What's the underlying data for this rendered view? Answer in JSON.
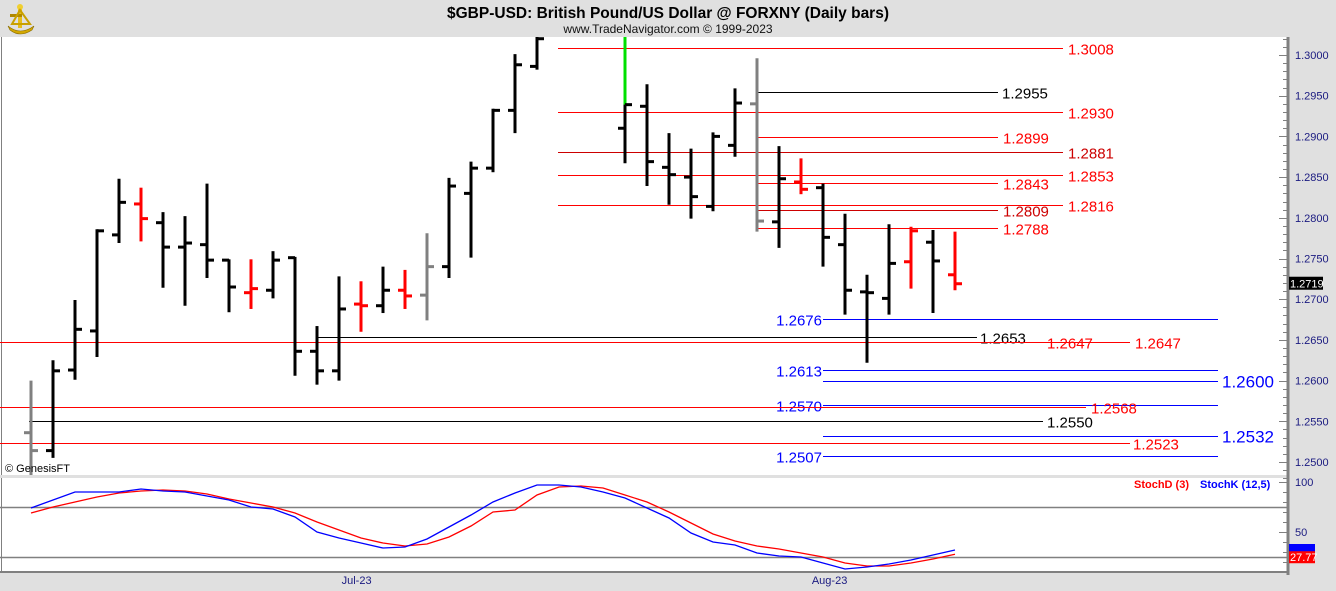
{
  "header": {
    "title": "$GBP-USD:  British Pound/US Dollar @ FORXNY  (Daily bars)",
    "subtitle": "www.TradeNavigator.com © 1999-2023",
    "logo_icon": "gold-sextant-icon"
  },
  "copyright": "© GenesisFT",
  "colors": {
    "up": "#000000",
    "down": "#ff0000",
    "neutral": "#808080",
    "highlight": "#00e000",
    "stochK": "#0000ff",
    "stochD": "#ff0000"
  },
  "chart_data": [
    {
      "type": "ohlc",
      "title": "$GBP-USD:  British Pound/US Dollar @ FORXNY  (Daily bars)",
      "ylim": [
        1.2478,
        1.3022
      ],
      "y_ticks": [
        "1.3000",
        "1.2950",
        "1.2900",
        "1.2850",
        "1.2800",
        "1.2750",
        "1.2700",
        "1.2650",
        "1.2600",
        "1.2550",
        "1.2500"
      ],
      "last_price": "1.2719",
      "x_labels": [
        {
          "label": "Jul-23",
          "index": 14.8
        },
        {
          "label": "Aug-23",
          "index": 36.3
        }
      ],
      "bars": [
        {
          "o": 1.2536,
          "h": 1.26,
          "l": 1.2482,
          "c": 1.2514,
          "color": "gray"
        },
        {
          "o": 1.2514,
          "h": 1.2625,
          "l": 1.2505,
          "c": 1.2612,
          "color": "black"
        },
        {
          "o": 1.2613,
          "h": 1.2699,
          "l": 1.2601,
          "c": 1.2663,
          "color": "black"
        },
        {
          "o": 1.2661,
          "h": 1.2786,
          "l": 1.2629,
          "c": 1.2784,
          "color": "black"
        },
        {
          "o": 1.2779,
          "h": 1.2848,
          "l": 1.2769,
          "c": 1.2819,
          "color": "black"
        },
        {
          "o": 1.2817,
          "h": 1.2837,
          "l": 1.2771,
          "c": 1.2799,
          "color": "red"
        },
        {
          "o": 1.2794,
          "h": 1.2807,
          "l": 1.2714,
          "c": 1.2764,
          "color": "black"
        },
        {
          "o": 1.2764,
          "h": 1.2802,
          "l": 1.2692,
          "c": 1.2769,
          "color": "black"
        },
        {
          "o": 1.2767,
          "h": 1.2842,
          "l": 1.2726,
          "c": 1.2748,
          "color": "black"
        },
        {
          "o": 1.2748,
          "h": 1.2749,
          "l": 1.2684,
          "c": 1.2715,
          "color": "black"
        },
        {
          "o": 1.2708,
          "h": 1.2749,
          "l": 1.2688,
          "c": 1.2713,
          "color": "red"
        },
        {
          "o": 1.2711,
          "h": 1.2759,
          "l": 1.2701,
          "c": 1.2748,
          "color": "black"
        },
        {
          "o": 1.2751,
          "h": 1.2752,
          "l": 1.2606,
          "c": 1.2636,
          "color": "black"
        },
        {
          "o": 1.2636,
          "h": 1.2667,
          "l": 1.2595,
          "c": 1.2612,
          "color": "black"
        },
        {
          "o": 1.2612,
          "h": 1.2728,
          "l": 1.26,
          "c": 1.2688,
          "color": "black"
        },
        {
          "o": 1.2694,
          "h": 1.2722,
          "l": 1.266,
          "c": 1.2692,
          "color": "red"
        },
        {
          "o": 1.2692,
          "h": 1.274,
          "l": 1.2683,
          "c": 1.2711,
          "color": "black"
        },
        {
          "o": 1.2711,
          "h": 1.2736,
          "l": 1.2688,
          "c": 1.2704,
          "color": "red"
        },
        {
          "o": 1.2705,
          "h": 1.2781,
          "l": 1.2674,
          "c": 1.274,
          "color": "gray"
        },
        {
          "o": 1.274,
          "h": 1.2849,
          "l": 1.2726,
          "c": 1.2839,
          "color": "black"
        },
        {
          "o": 1.283,
          "h": 1.2869,
          "l": 1.2751,
          "c": 1.2861,
          "color": "black"
        },
        {
          "o": 1.2861,
          "h": 1.2934,
          "l": 1.2856,
          "c": 1.2932,
          "color": "black"
        },
        {
          "o": 1.2932,
          "h": 1.3001,
          "l": 1.2904,
          "c": 1.2988,
          "color": "black"
        },
        {
          "o": 1.2986,
          "h": 1.303,
          "l": 1.2982,
          "c": 1.302,
          "color": "black"
        },
        null,
        null,
        null,
        {
          "o": 1.291,
          "h": 1.303,
          "l": 1.2867,
          "c": 1.2939,
          "color": "black",
          "highlight_above": 1.2939
        },
        {
          "o": 1.2937,
          "h": 1.2964,
          "l": 1.2839,
          "c": 1.2869,
          "color": "black"
        },
        {
          "o": 1.2862,
          "h": 1.2904,
          "l": 1.2816,
          "c": 1.2853,
          "color": "black"
        },
        {
          "o": 1.285,
          "h": 1.2885,
          "l": 1.2799,
          "c": 1.2826,
          "color": "black"
        },
        {
          "o": 1.2814,
          "h": 1.2905,
          "l": 1.2808,
          "c": 1.29,
          "color": "black"
        },
        {
          "o": 1.2889,
          "h": 1.2959,
          "l": 1.2875,
          "c": 1.2941,
          "color": "black"
        },
        {
          "o": 1.294,
          "h": 1.2996,
          "l": 1.2783,
          "c": 1.2796,
          "color": "gray"
        },
        {
          "o": 1.2795,
          "h": 1.2888,
          "l": 1.2763,
          "c": 1.2848,
          "color": "black"
        },
        {
          "o": 1.2844,
          "h": 1.2873,
          "l": 1.2829,
          "c": 1.2835,
          "color": "red"
        },
        {
          "o": 1.2837,
          "h": 1.2842,
          "l": 1.274,
          "c": 1.2776,
          "color": "black"
        },
        {
          "o": 1.2767,
          "h": 1.2805,
          "l": 1.2681,
          "c": 1.2711,
          "color": "black"
        },
        {
          "o": 1.2709,
          "h": 1.273,
          "l": 1.2622,
          "c": 1.2708,
          "color": "black"
        },
        {
          "o": 1.2701,
          "h": 1.2792,
          "l": 1.2681,
          "c": 1.2744,
          "color": "black"
        },
        {
          "o": 1.2746,
          "h": 1.2789,
          "l": 1.2713,
          "c": 1.2784,
          "color": "red"
        },
        {
          "o": 1.277,
          "h": 1.2785,
          "l": 1.2683,
          "c": 1.2747,
          "color": "black"
        },
        {
          "o": 1.273,
          "h": 1.2783,
          "l": 1.2711,
          "c": 1.2719,
          "color": "red"
        }
      ],
      "levels": [
        {
          "value": 1.3008,
          "label": "1.3008",
          "color": "#ff0000"
        },
        {
          "value": 1.2955,
          "label": "1.2955",
          "color": "#000000"
        },
        {
          "value": 1.293,
          "label": "1.2930",
          "color": "#ff0000"
        },
        {
          "value": 1.2899,
          "label": "1.2899",
          "color": "#ff0000"
        },
        {
          "value": 1.2881,
          "label": "1.2881",
          "color": "#cc0000"
        },
        {
          "value": 1.2853,
          "label": "1.2853",
          "color": "#ff0000"
        },
        {
          "value": 1.2843,
          "label": "1.2843",
          "color": "#ff0000"
        },
        {
          "value": 1.2816,
          "label": "1.2816",
          "color": "#ff0000"
        },
        {
          "value": 1.2809,
          "label": "1.2809",
          "color": "#cc0000"
        },
        {
          "value": 1.2788,
          "label": "1.2788",
          "color": "#ff0000"
        },
        {
          "value": 1.2676,
          "label": "1.2676",
          "color": "#0000ff"
        },
        {
          "value": 1.2653,
          "label": "1.2653",
          "color": "#000000"
        },
        {
          "value": 1.2647,
          "label": "1.2647",
          "color": "#ff0000"
        },
        {
          "value": 1.2647,
          "label": "1.2647",
          "color": "#ff0000"
        },
        {
          "value": 1.2613,
          "label": "1.2613",
          "color": "#0000ff"
        },
        {
          "value": 1.26,
          "label": "1.2600",
          "color": "#0000ff"
        },
        {
          "value": 1.257,
          "label": "1.2570",
          "color": "#0000ff"
        },
        {
          "value": 1.2568,
          "label": "1.2568",
          "color": "#ff0000"
        },
        {
          "value": 1.255,
          "label": "1.2550",
          "color": "#000000"
        },
        {
          "value": 1.2532,
          "label": "1.2532",
          "color": "#0000ff"
        },
        {
          "value": 1.2523,
          "label": "1.2523",
          "color": "#ff0000"
        },
        {
          "value": 1.2507,
          "label": "1.2507",
          "color": "#0000ff"
        }
      ]
    },
    {
      "type": "line",
      "title": "Stochastic",
      "ylim": [
        0,
        100
      ],
      "y_ticks": [
        "100",
        "50"
      ],
      "reference_lines": [
        75,
        25
      ],
      "legend": [
        "StochD (3)",
        "StochK (12,5)"
      ],
      "legend_position": "top-right",
      "last_value_D": "27.77",
      "series": [
        {
          "name": "StochK (12,5)",
          "color": "#0000ff",
          "values": [
            74,
            82,
            90,
            90,
            90,
            93,
            91,
            90,
            86,
            82,
            75,
            73,
            65,
            50,
            44,
            39,
            34,
            35,
            43,
            55,
            67,
            80,
            89,
            97,
            97,
            95,
            90,
            84,
            74,
            64,
            49,
            40,
            37,
            29,
            26,
            25,
            19,
            13,
            15,
            18,
            22,
            27,
            32
          ]
        },
        {
          "name": "StochD (3)",
          "color": "#ff0000",
          "values": [
            69,
            75,
            80,
            85,
            89,
            91,
            92,
            91,
            88,
            83,
            79,
            75,
            69,
            60,
            52,
            44,
            39,
            36,
            38,
            45,
            56,
            70,
            72,
            87,
            95,
            96,
            94,
            87,
            80,
            70,
            59,
            48,
            41,
            36,
            33,
            29,
            25,
            19,
            16,
            16,
            19,
            23,
            27.77
          ]
        }
      ]
    }
  ]
}
